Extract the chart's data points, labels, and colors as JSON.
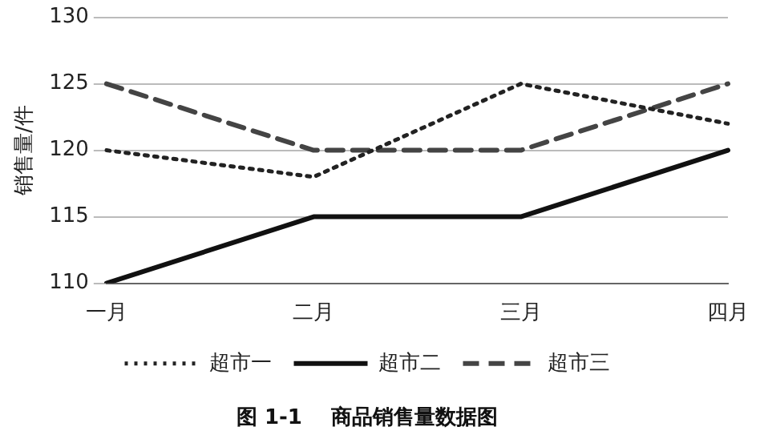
{
  "chart_data": {
    "type": "line",
    "title": "图 1-1    商品销售量数据图",
    "ylabel": "销售量/件",
    "categories": [
      "一月",
      "二月",
      "三月",
      "四月"
    ],
    "series": [
      {
        "name": "超市一",
        "color": "#222222",
        "values": [
          120,
          118,
          125,
          122
        ],
        "line_style": "dotted"
      },
      {
        "name": "超市二",
        "color": "#111111",
        "values": [
          110,
          115,
          115,
          120
        ],
        "line_style": "solid"
      },
      {
        "name": "超市三",
        "color": "#444444",
        "values": [
          125,
          120,
          120,
          125
        ],
        "line_style": "dashed"
      }
    ],
    "ylim": [
      110,
      130
    ],
    "yticks": [
      110,
      115,
      120,
      125,
      130
    ],
    "grid": "y",
    "legend": "bottom",
    "marker": "none"
  }
}
